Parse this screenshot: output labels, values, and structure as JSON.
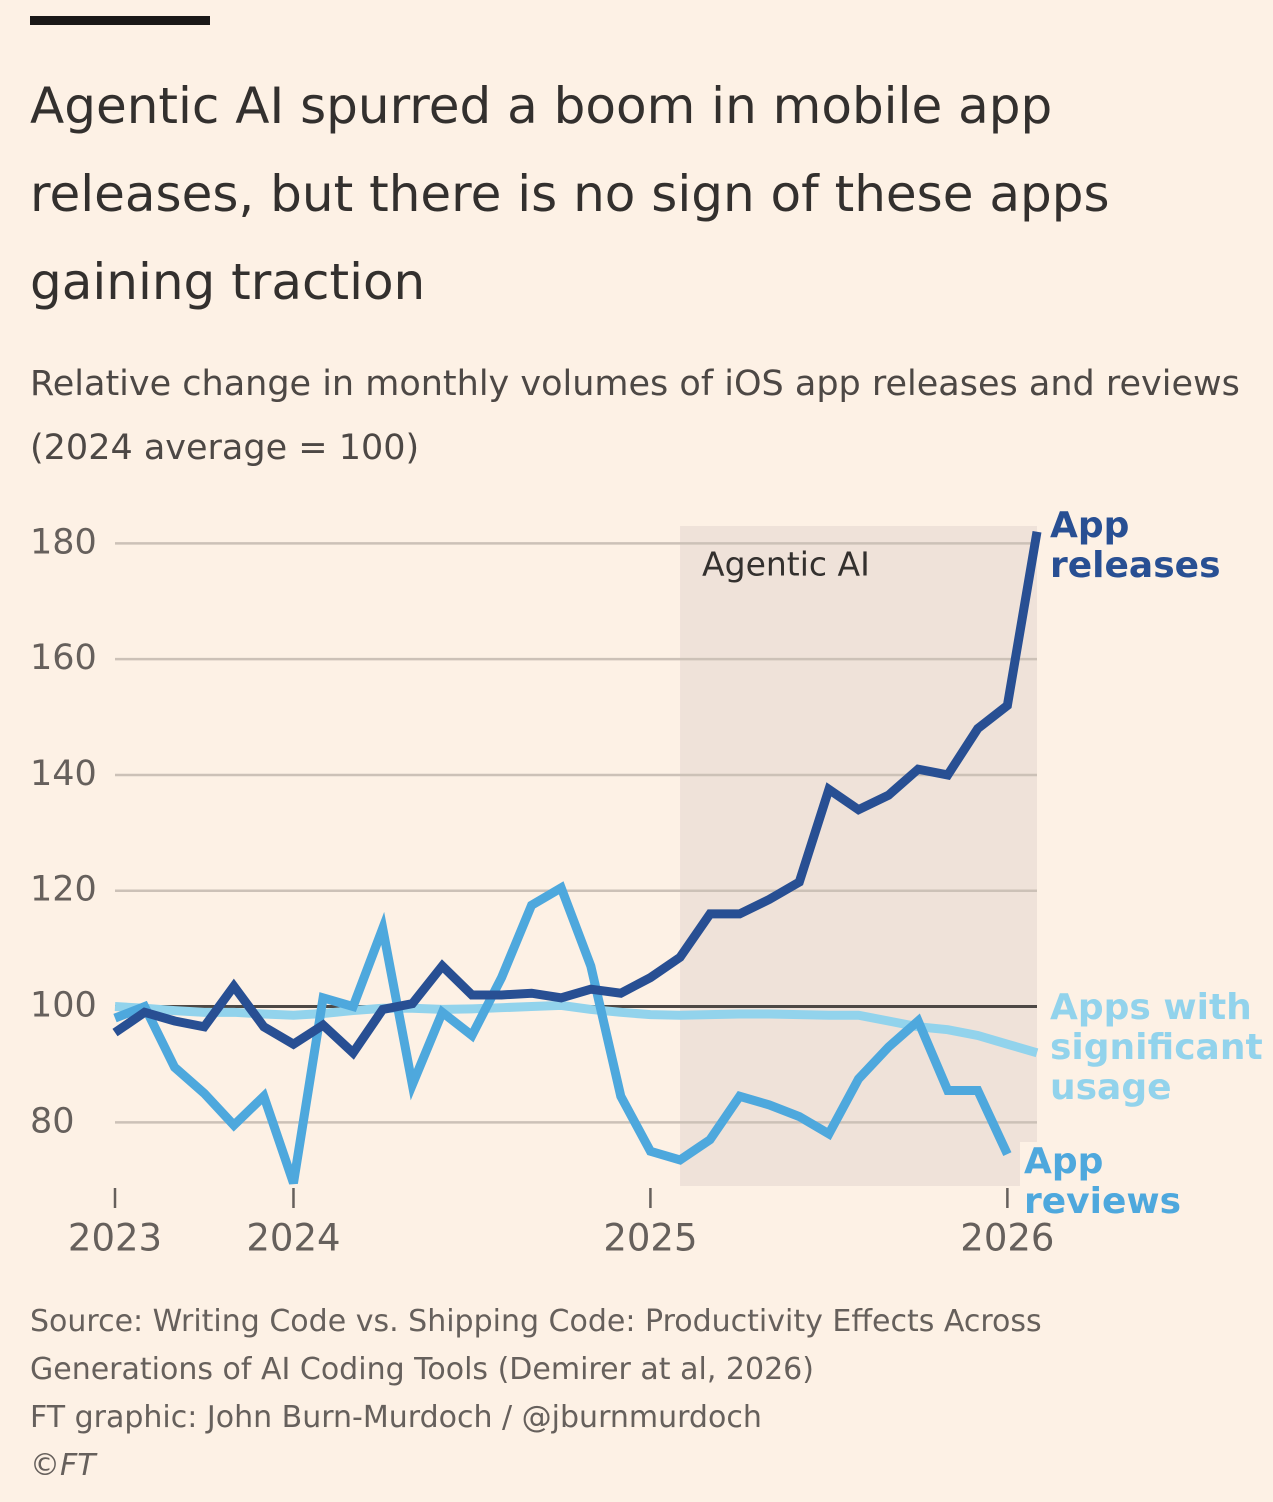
{
  "chart_data": {
    "type": "line",
    "title": "Agentic AI spurred a boom in mobile app releases, but there is no sign of these apps gaining traction",
    "subtitle": "Relative change in monthly volumes of iOS app releases and reviews (2024 average = 100)",
    "source": [
      "Source: Writing Code vs. Shipping Code: Productivity Effects Across Generations of AI Coding Tools (Demirer at al, 2026)",
      "FT graphic: John Burn-Murdoch / @jburnmurdoch",
      "©FT"
    ],
    "x": [
      2023.5,
      2023.583,
      2023.667,
      2023.75,
      2023.833,
      2023.917,
      2024,
      2024.083,
      2024.167,
      2024.25,
      2024.333,
      2024.417,
      2024.5,
      2024.583,
      2024.667,
      2024.75,
      2024.833,
      2024.917,
      2025,
      2025.083,
      2025.167,
      2025.25,
      2025.333,
      2025.417,
      2025.5,
      2025.583,
      2025.667,
      2025.75,
      2025.833,
      2025.917,
      2026,
      2026.083
    ],
    "series": [
      {
        "name": "Apps with significant usage",
        "color": "#92d3ec",
        "values": [
          100,
          99.7,
          99.3,
          99,
          99,
          98.7,
          98.5,
          98.8,
          99.3,
          99.7,
          99.7,
          99.5,
          99.6,
          99.8,
          100,
          100.2,
          99.5,
          99,
          98.6,
          98.5,
          98.6,
          98.7,
          98.7,
          98.6,
          98.5,
          98.5,
          97.5,
          96.5,
          96,
          95,
          93.5,
          92
        ]
      },
      {
        "name": "App reviews",
        "color": "#4ea8dd",
        "values": [
          98,
          100,
          89.5,
          85,
          79.5,
          84.5,
          69.5,
          101.5,
          100,
          113.5,
          86.5,
          99,
          95,
          105,
          117.5,
          120.5,
          107,
          84.5,
          75,
          73.5,
          77,
          84.5,
          83,
          81,
          78,
          87.5,
          93,
          97.5,
          85.5,
          85.5,
          74.5,
          null
        ]
      },
      {
        "name": "App releases",
        "color": "#284f93",
        "values": [
          95.5,
          99,
          97.5,
          96.5,
          103.5,
          96.5,
          93.5,
          96.8,
          92,
          99.5,
          100.5,
          107,
          102,
          102,
          102.3,
          101.5,
          103,
          102.3,
          105,
          108.5,
          116,
          116,
          118.5,
          121.5,
          137.5,
          134,
          136.5,
          141,
          140,
          148,
          152,
          182
        ]
      }
    ],
    "shaded_region": {
      "label": "Agentic AI",
      "x": [
        2025.083,
        2026.083
      ]
    },
    "reference_line": 100,
    "xlim": [
      2023.5,
      2026.083
    ],
    "xticks": [
      {
        "value": 2023.5,
        "label": "2023"
      },
      2024,
      2025,
      2026
    ],
    "ylim": [
      69,
      183
    ],
    "yticks": [
      80,
      100,
      120,
      140,
      160,
      180
    ],
    "grid": true
  }
}
